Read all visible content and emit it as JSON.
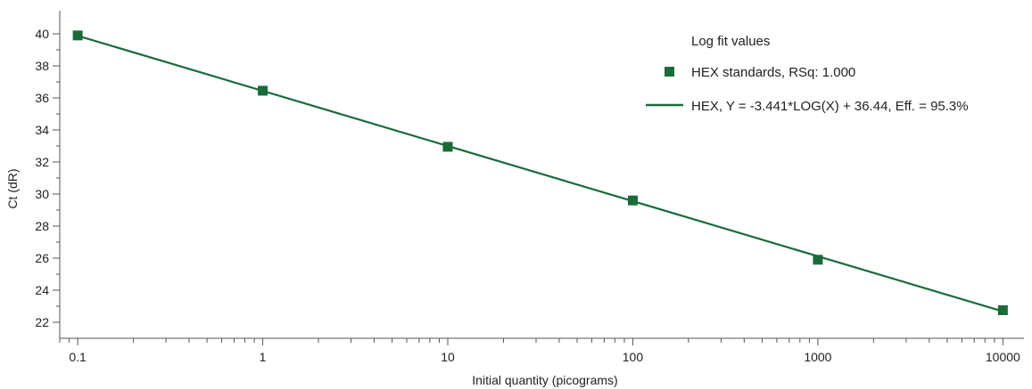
{
  "chart_data": {
    "type": "scatter",
    "xscale": "log",
    "xlabel": "Initial quantity (picograms)",
    "ylabel": "Ct (dR)",
    "xlim": [
      0.08,
      13000
    ],
    "ylim": [
      21,
      41
    ],
    "xticks": [
      0.1,
      1,
      10,
      100,
      1000,
      10000
    ],
    "xtick_labels": [
      "0.1",
      "1",
      "10",
      "100",
      "1000",
      "10000"
    ],
    "yticks": [
      22,
      24,
      26,
      28,
      30,
      32,
      34,
      36,
      38,
      40
    ],
    "grid": false,
    "legend_position": "top-right",
    "legend_title": "Log fit values",
    "color": "#1a6b3a",
    "series": [
      {
        "name": "HEX standards, RSq: 1.000",
        "kind": "points",
        "marker": "square",
        "x": [
          0.1,
          1,
          10,
          100,
          1000,
          10000
        ],
        "y": [
          39.9,
          36.45,
          32.95,
          29.6,
          25.9,
          22.75
        ]
      },
      {
        "name": "HEX, Y = -3.441*LOG(X) + 36.44, Eff. = 95.3%",
        "kind": "fit-line",
        "slope": -3.441,
        "intercept": 36.44,
        "x_range": [
          0.1,
          10000
        ]
      }
    ]
  }
}
